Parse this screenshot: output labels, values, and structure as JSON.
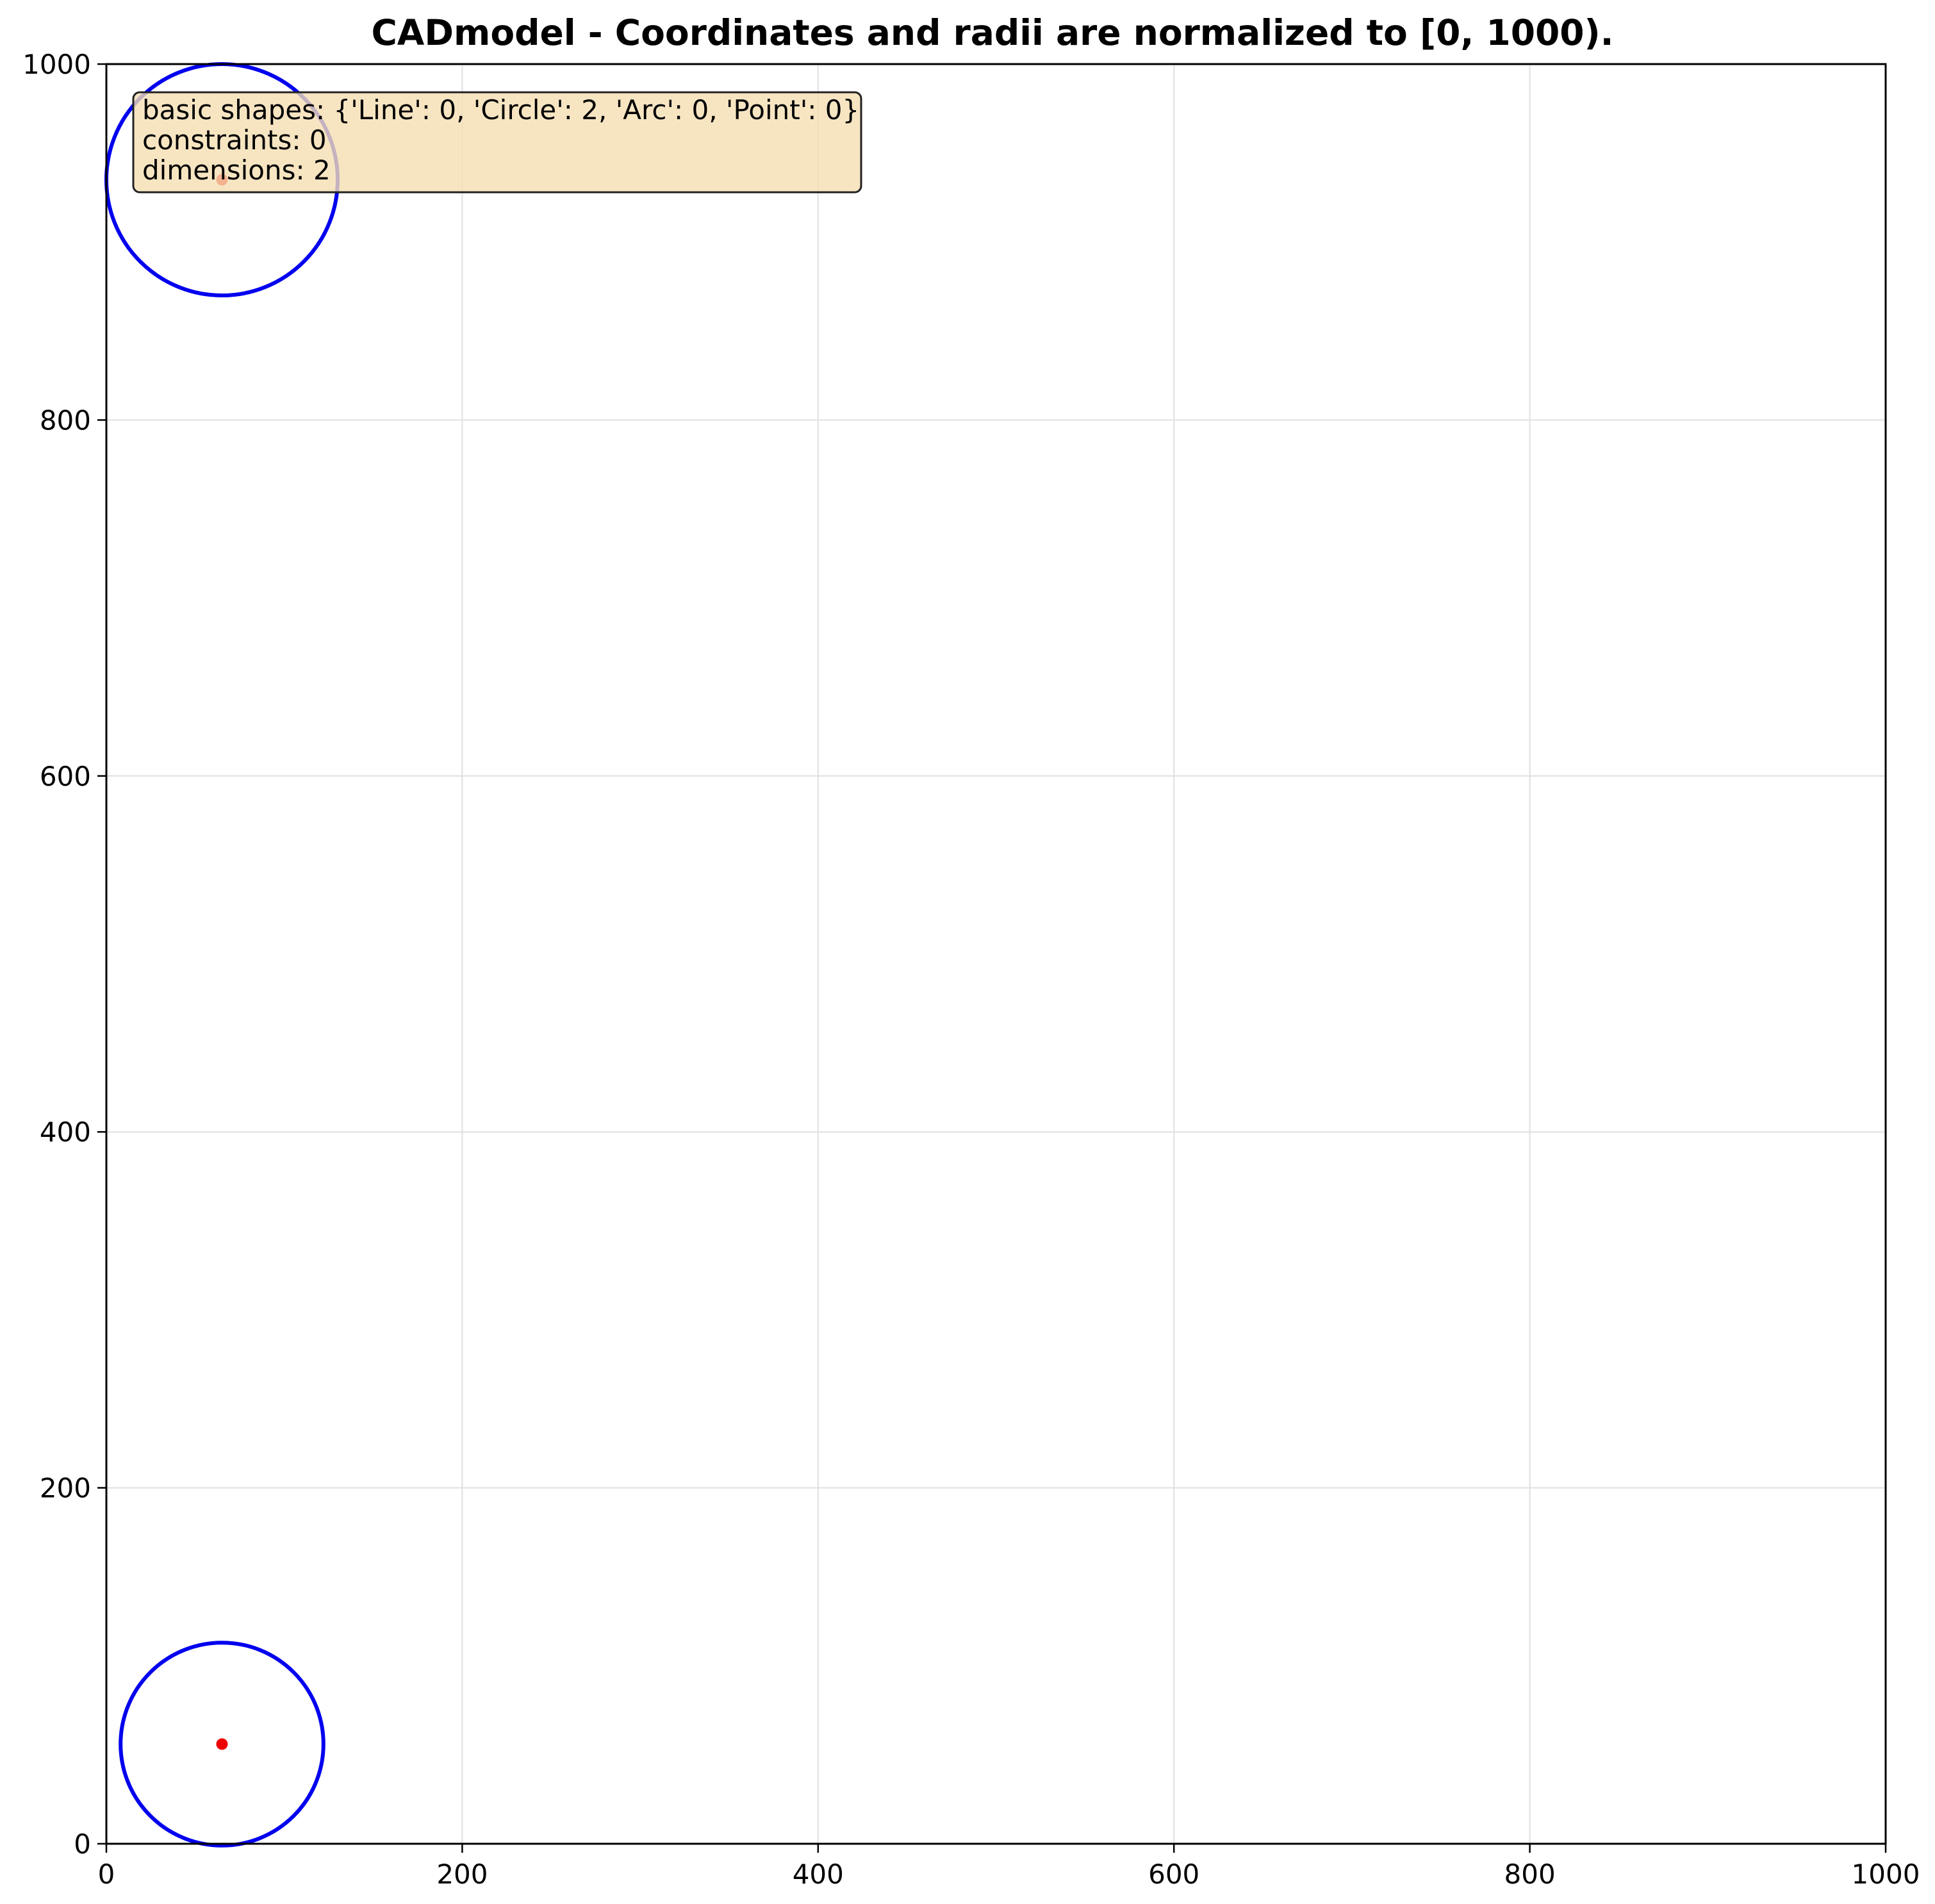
{
  "chart_data": {
    "type": "scatter",
    "title": "CADmodel - Coordinates and radii are normalized to [0, 1000).",
    "xlabel": "",
    "ylabel": "",
    "xlim": [
      0,
      1000
    ],
    "ylim": [
      0,
      1000
    ],
    "xticks": [
      "0",
      "200",
      "400",
      "600",
      "800",
      "1000"
    ],
    "yticks": [
      "0",
      "200",
      "400",
      "600",
      "800",
      "1000"
    ],
    "grid": true,
    "circles": [
      {
        "cx": 65,
        "cy": 935,
        "r": 65
      },
      {
        "cx": 65,
        "cy": 56,
        "r": 57
      }
    ],
    "center_points": [
      {
        "x": 65,
        "y": 935
      },
      {
        "x": 65,
        "y": 56
      }
    ],
    "info_box": {
      "lines": [
        "basic shapes: {'Line': 0, 'Circle': 2, 'Arc': 0, 'Point': 0}",
        "constraints: 0",
        "dimensions: 2"
      ],
      "placement": "top-left"
    },
    "colors": {
      "circle": "#0000ee",
      "center_point": "#ee0000",
      "grid": "#e0e0e0",
      "info_box_fill": "#f5deb3",
      "info_box_edge": "#222222"
    }
  }
}
